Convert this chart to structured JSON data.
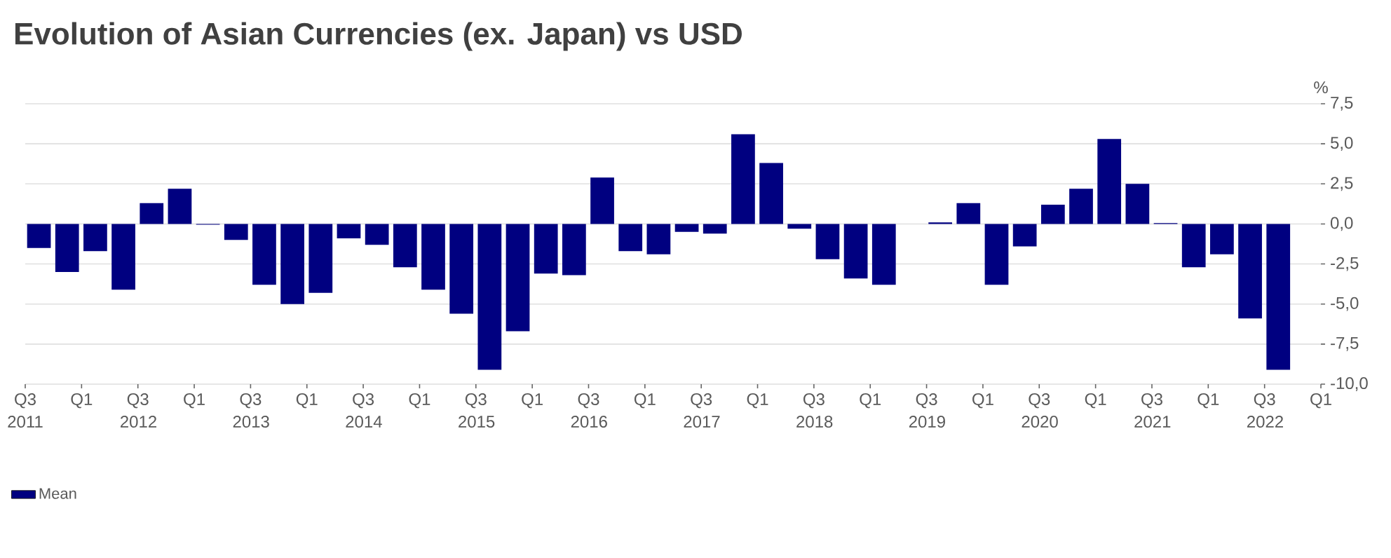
{
  "chart_data": {
    "type": "bar",
    "title": "Evolution of Asian Currencies (ex. Japan) vs USD",
    "ylabel": "%",
    "x": [
      "2011-08-15",
      "2011-11-15",
      "2012-02-15",
      "2012-05-15",
      "2012-08-15",
      "2012-11-15",
      "2013-02-15",
      "2013-05-15",
      "2013-08-15",
      "2013-11-15",
      "2014-02-15",
      "2014-05-15",
      "2014-08-15",
      "2014-11-15",
      "2015-02-15",
      "2015-05-15",
      "2015-08-15",
      "2015-11-15",
      "2016-02-15",
      "2016-05-15",
      "2016-08-15",
      "2016-11-15",
      "2017-02-15",
      "2017-05-15",
      "2017-08-15",
      "2017-11-15",
      "2018-02-15",
      "2018-05-15",
      "2018-08-15",
      "2018-11-15",
      "2019-02-15",
      "2019-05-15",
      "2019-08-15",
      "2019-11-15",
      "2020-02-15",
      "2020-05-15",
      "2020-08-15",
      "2020-11-15",
      "2021-02-15",
      "2021-05-15",
      "2021-08-15",
      "2021-11-15",
      "2022-02-15",
      "2022-05-15",
      "2022-08-15"
    ],
    "series": [
      {
        "name": "Mean",
        "color": "#000080",
        "values": [
          -1.5,
          -3.0,
          -1.7,
          -4.1,
          1.3,
          2.2,
          -0.05,
          -1.0,
          -3.8,
          -5.0,
          -4.3,
          -0.9,
          -1.3,
          -2.7,
          -4.1,
          -5.6,
          -9.1,
          -6.7,
          -3.1,
          -3.2,
          2.9,
          -1.7,
          -1.9,
          -0.5,
          -0.6,
          5.6,
          3.8,
          -0.3,
          -2.2,
          -3.4,
          -3.8,
          null,
          0.1,
          1.3,
          -3.8,
          -1.4,
          1.2,
          2.2,
          5.3,
          2.5,
          0.05,
          -2.7,
          -1.9,
          -5.9,
          -9.1
        ]
      }
    ],
    "xlim": [
      "2011-07",
      "2023-01"
    ],
    "xticks": [
      {
        "value": "2011-07",
        "label": "Q3 2011"
      },
      {
        "value": "2012-01",
        "label": "Q1"
      },
      {
        "value": "2012-07",
        "label": "Q3 2012"
      },
      {
        "value": "2013-01",
        "label": "Q1"
      },
      {
        "value": "2013-07",
        "label": "Q3 2013"
      },
      {
        "value": "2014-01",
        "label": "Q1"
      },
      {
        "value": "2014-07",
        "label": "Q3 2014"
      },
      {
        "value": "2015-01",
        "label": "Q1"
      },
      {
        "value": "2015-07",
        "label": "Q3 2015"
      },
      {
        "value": "2016-01",
        "label": "Q1"
      },
      {
        "value": "2016-07",
        "label": "Q3 2016"
      },
      {
        "value": "2017-01",
        "label": "Q1"
      },
      {
        "value": "2017-07",
        "label": "Q3 2017"
      },
      {
        "value": "2018-01",
        "label": "Q1"
      },
      {
        "value": "2018-07",
        "label": "Q3 2018"
      },
      {
        "value": "2019-01",
        "label": "Q1"
      },
      {
        "value": "2019-07",
        "label": "Q3 2019"
      },
      {
        "value": "2020-01",
        "label": "Q1"
      },
      {
        "value": "2020-07",
        "label": "Q3 2020"
      },
      {
        "value": "2021-01",
        "label": "Q1"
      },
      {
        "value": "2021-07",
        "label": "Q3 2021"
      },
      {
        "value": "2022-01",
        "label": "Q1"
      },
      {
        "value": "2022-07",
        "label": "Q3 2022"
      },
      {
        "value": "2023-01",
        "label": "Q1"
      }
    ],
    "ylim": [
      -10,
      7.5
    ],
    "yticks": [
      {
        "value": -10,
        "label": "-10,0"
      },
      {
        "value": -7.5,
        "label": "-7,5"
      },
      {
        "value": -5,
        "label": "-5,0"
      },
      {
        "value": -2.5,
        "label": "-2,5"
      },
      {
        "value": 0,
        "label": "0,0"
      },
      {
        "value": 2.5,
        "label": "2,5"
      },
      {
        "value": 5,
        "label": "5,0"
      },
      {
        "value": 7.5,
        "label": "7,5"
      }
    ],
    "grid": "y",
    "legend": "bottom left"
  }
}
